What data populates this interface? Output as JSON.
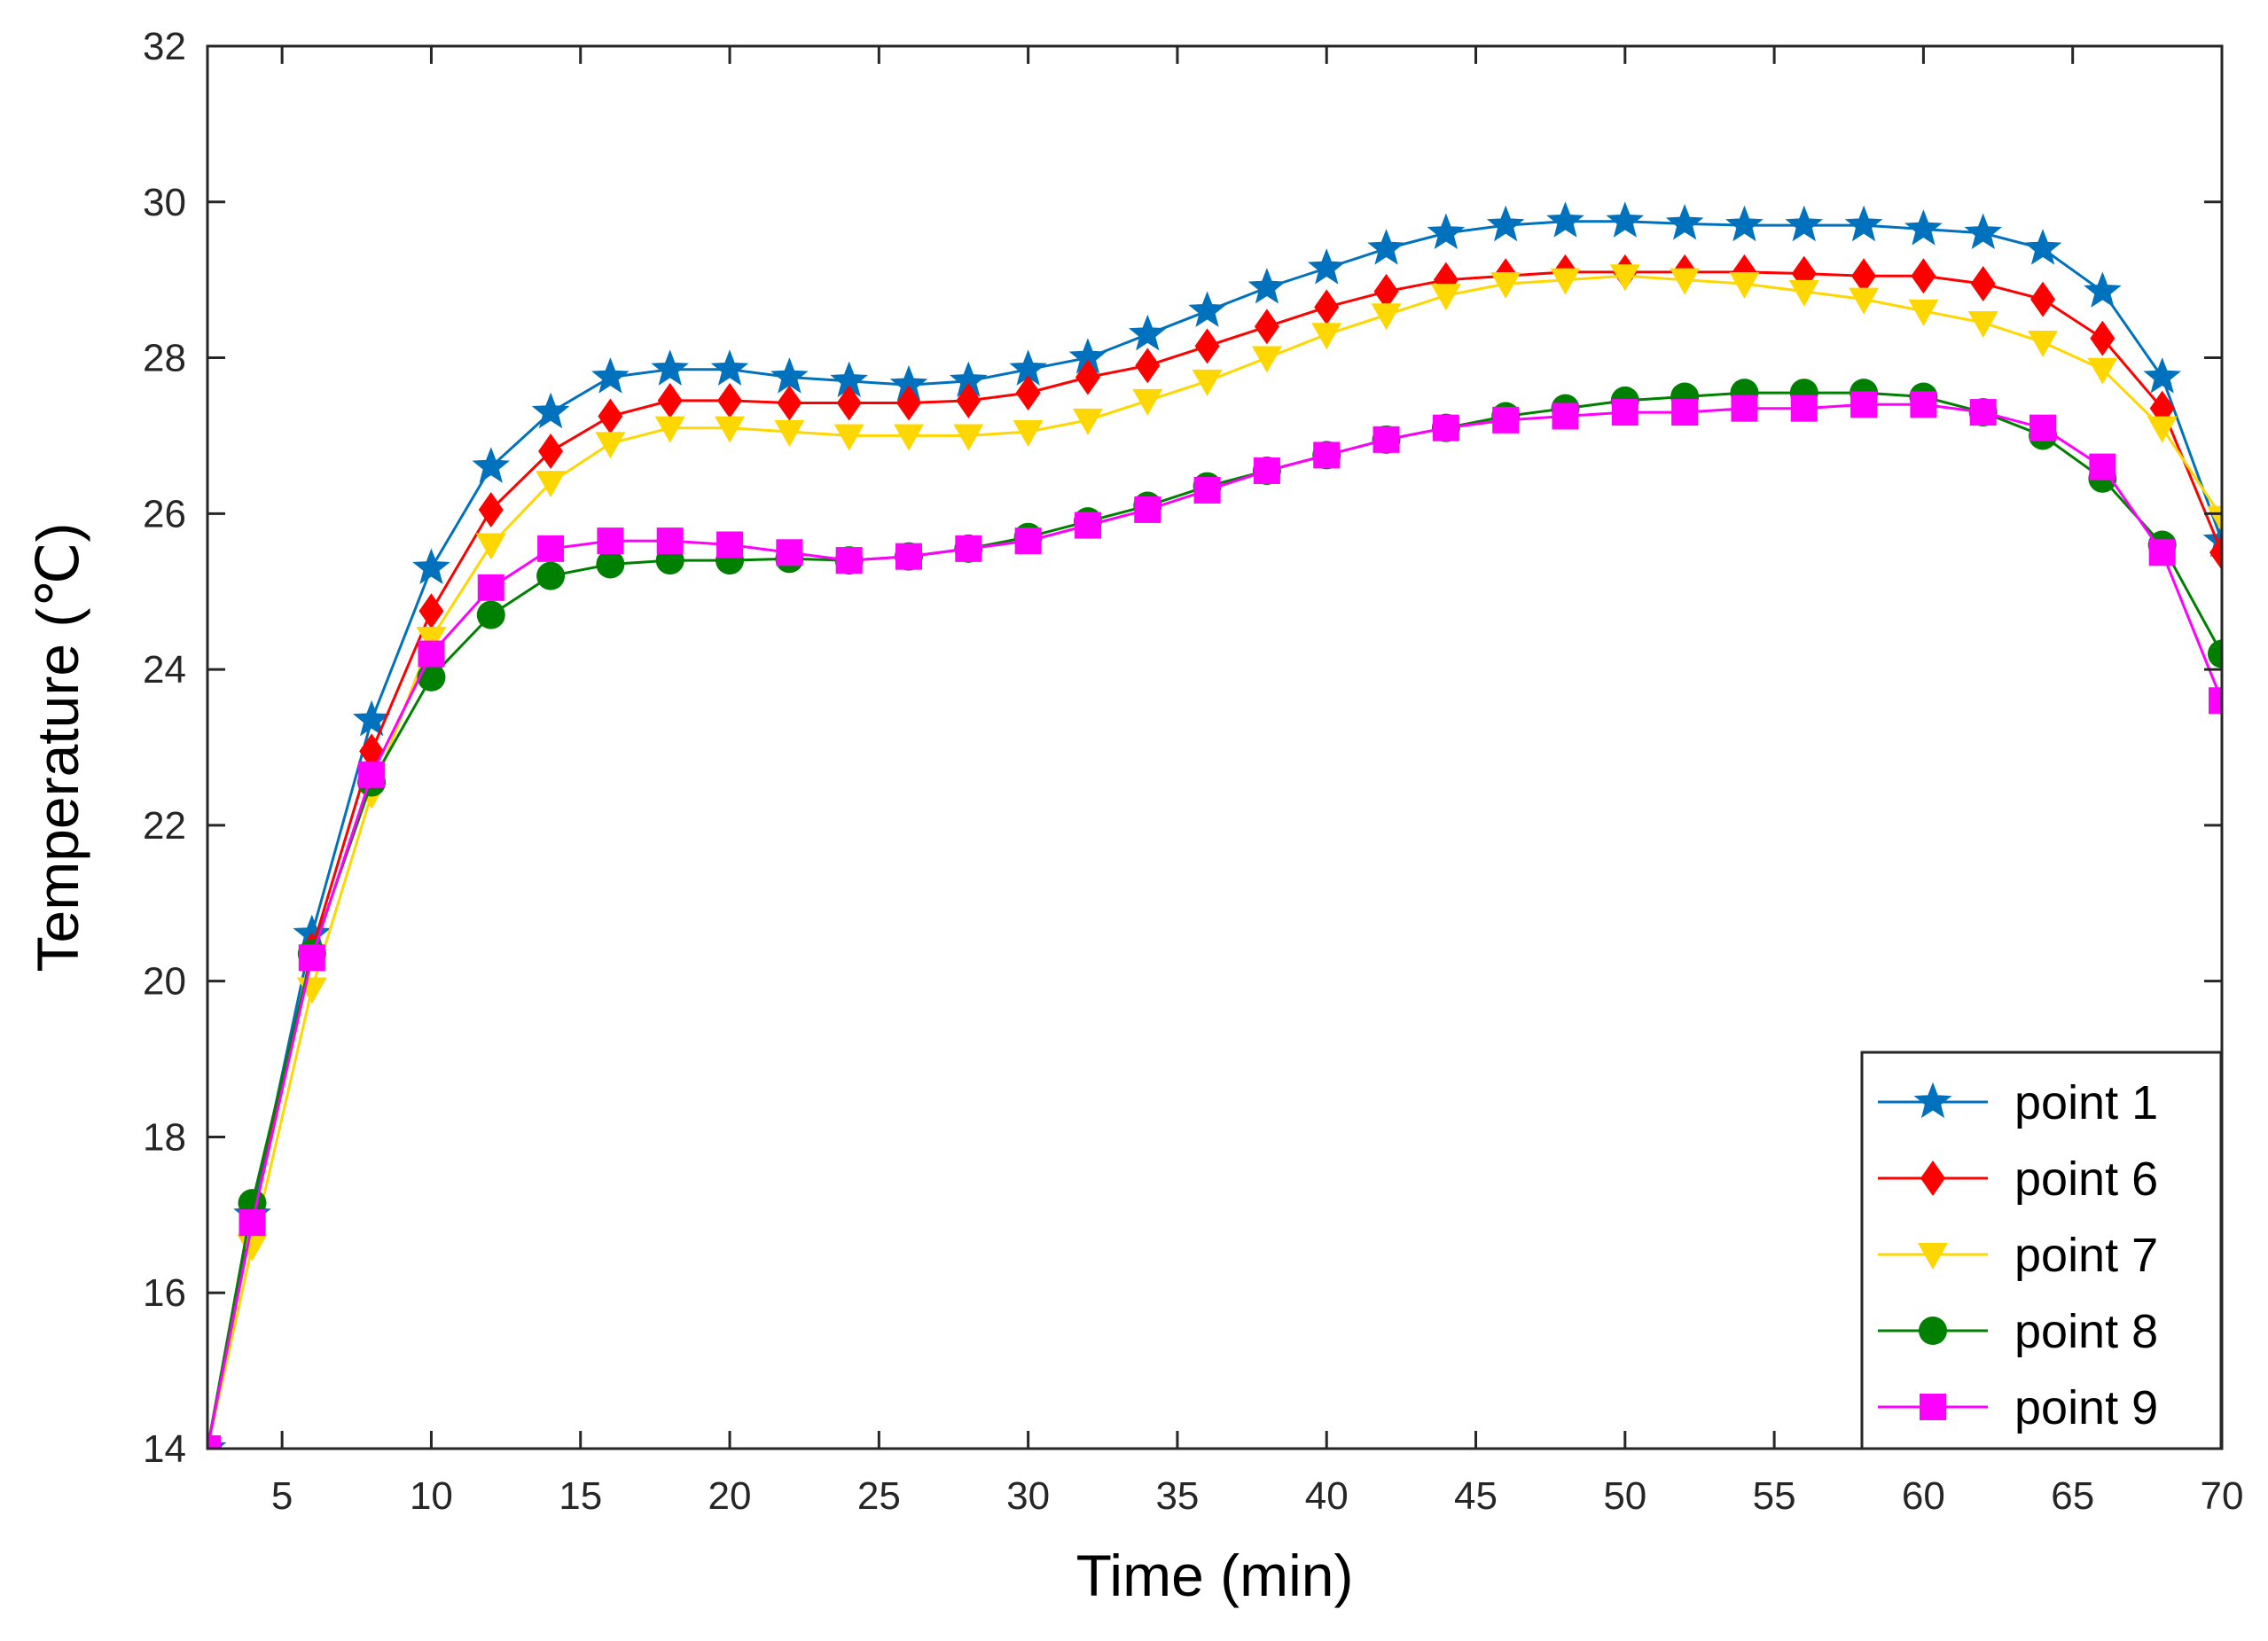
{
  "chart_data": {
    "type": "line",
    "title": "",
    "xlabel": "Time (min)",
    "ylabel": "Temperature (℃)",
    "xlim": [
      2.5,
      70
    ],
    "ylim": [
      14,
      32
    ],
    "xticks": [
      5,
      10,
      15,
      20,
      25,
      30,
      35,
      40,
      45,
      50,
      55,
      60,
      65,
      70
    ],
    "yticks": [
      14,
      16,
      18,
      20,
      22,
      24,
      26,
      28,
      30,
      32
    ],
    "grid": false,
    "legend_position": "bottom-right",
    "x": [
      2.5,
      4,
      6,
      8,
      10,
      12,
      14,
      16,
      18,
      20,
      22,
      24,
      26,
      28,
      30,
      32,
      34,
      36,
      38,
      40,
      42,
      44,
      46,
      48,
      50,
      52,
      54,
      56,
      58,
      60,
      62,
      64,
      66,
      68,
      70
    ],
    "series": [
      {
        "name": "point 1",
        "color": "#0072BD",
        "marker": "star",
        "values": [
          14.0,
          17.0,
          20.6,
          23.35,
          25.3,
          26.6,
          27.3,
          27.75,
          27.85,
          27.85,
          27.75,
          27.7,
          27.65,
          27.7,
          27.85,
          28.0,
          28.3,
          28.6,
          28.9,
          29.15,
          29.4,
          29.6,
          29.7,
          29.75,
          29.75,
          29.72,
          29.7,
          29.7,
          29.7,
          29.65,
          29.6,
          29.4,
          28.85,
          27.75,
          25.65
        ]
      },
      {
        "name": "point 6",
        "color": "#FF0000",
        "marker": "diamond",
        "values": [
          14.0,
          16.9,
          20.4,
          22.95,
          24.75,
          26.05,
          26.8,
          27.25,
          27.45,
          27.45,
          27.42,
          27.42,
          27.42,
          27.45,
          27.55,
          27.75,
          27.9,
          28.15,
          28.4,
          28.65,
          28.85,
          29.0,
          29.05,
          29.1,
          29.1,
          29.1,
          29.1,
          29.08,
          29.05,
          29.05,
          28.95,
          28.75,
          28.25,
          27.35,
          25.5
        ]
      },
      {
        "name": "point 7",
        "color": "#FFD700",
        "marker": "triangle-down",
        "values": [
          14.0,
          16.6,
          19.9,
          22.4,
          24.4,
          25.6,
          26.4,
          26.9,
          27.1,
          27.1,
          27.05,
          27.0,
          27.0,
          27.0,
          27.05,
          27.2,
          27.45,
          27.7,
          28.0,
          28.3,
          28.55,
          28.8,
          28.95,
          29.0,
          29.05,
          29.0,
          28.95,
          28.85,
          28.75,
          28.6,
          28.45,
          28.2,
          27.85,
          27.1,
          25.95
        ]
      },
      {
        "name": "point 8",
        "color": "#008000",
        "marker": "circle",
        "values": [
          14.0,
          17.15,
          20.35,
          22.55,
          23.9,
          24.7,
          25.2,
          25.35,
          25.4,
          25.4,
          25.42,
          25.4,
          25.45,
          25.55,
          25.7,
          25.9,
          26.1,
          26.35,
          26.55,
          26.75,
          26.95,
          27.1,
          27.25,
          27.35,
          27.45,
          27.5,
          27.55,
          27.55,
          27.55,
          27.5,
          27.3,
          27.0,
          26.45,
          25.6,
          24.2
        ]
      },
      {
        "name": "point 9",
        "color": "#FF00FF",
        "marker": "square",
        "values": [
          14.0,
          16.9,
          20.3,
          22.65,
          24.2,
          25.05,
          25.55,
          25.65,
          25.65,
          25.6,
          25.5,
          25.4,
          25.45,
          25.55,
          25.65,
          25.85,
          26.05,
          26.3,
          26.55,
          26.75,
          26.95,
          27.1,
          27.2,
          27.25,
          27.3,
          27.3,
          27.35,
          27.35,
          27.4,
          27.4,
          27.3,
          27.1,
          26.6,
          25.5,
          23.6
        ]
      }
    ]
  }
}
